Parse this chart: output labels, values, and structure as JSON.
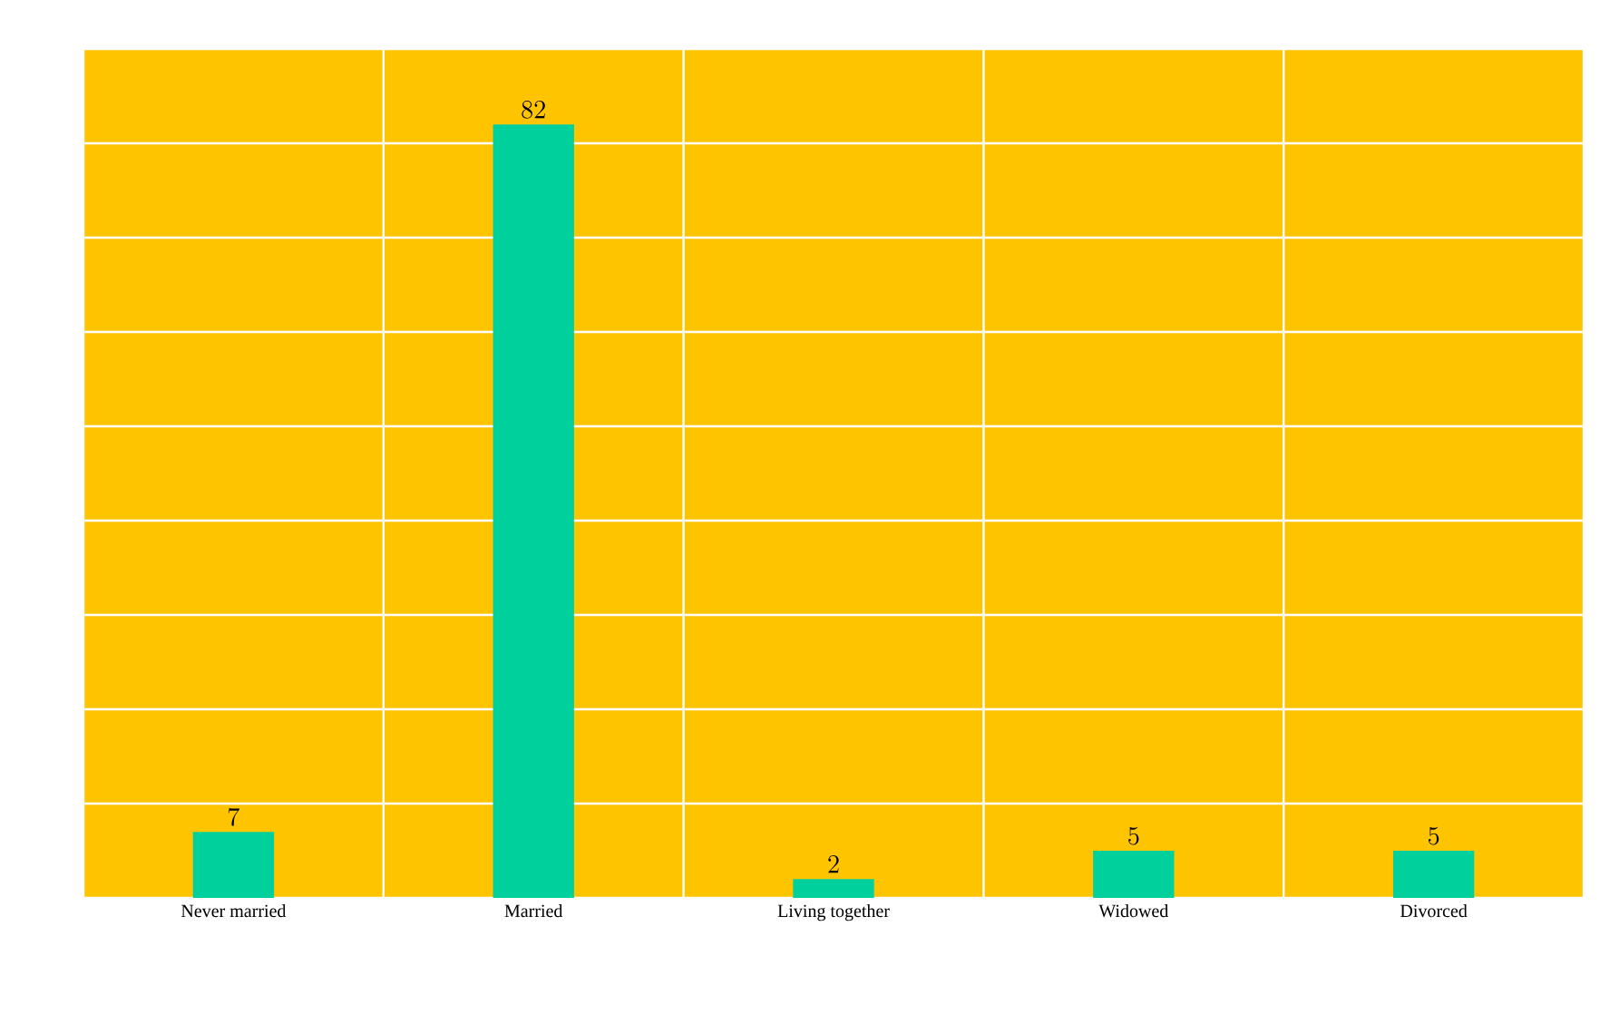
{
  "chart_data": {
    "type": "bar",
    "categories": [
      "Never married",
      "Married",
      "Living together",
      "Widowed",
      "Divorced"
    ],
    "values": [
      7,
      82,
      2,
      5,
      5
    ],
    "color": "#00d09c",
    "ylim": [
      0,
      90
    ],
    "yticks": [
      0,
      10,
      20,
      30,
      40,
      50,
      60,
      70,
      80,
      90
    ],
    "tick_labels": "x",
    "grid": true,
    "data_labels": true
  }
}
